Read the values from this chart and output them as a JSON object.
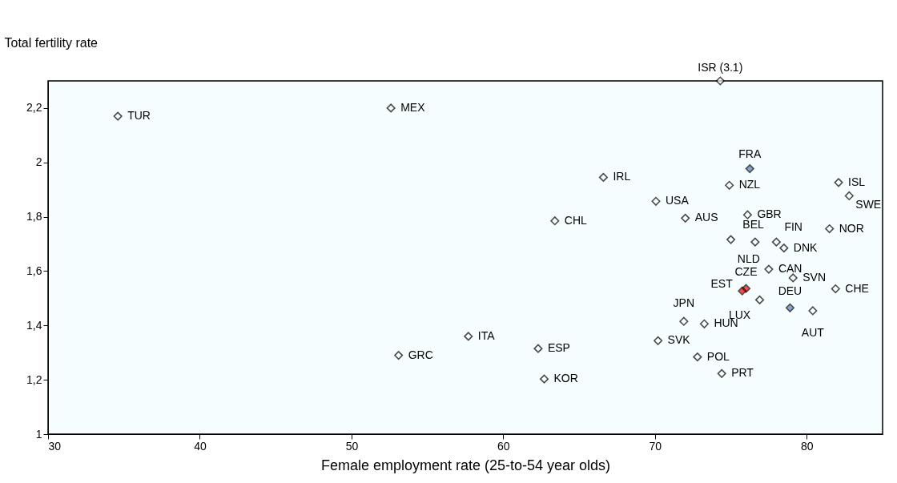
{
  "chart_data": {
    "type": "scatter",
    "xlabel": "Female employment rate (25-to-54 year olds)",
    "ylabel": "Total fertility rate",
    "xlim": [
      30,
      85
    ],
    "xticks": [
      30,
      40,
      50,
      60,
      70,
      80
    ],
    "ylim": [
      1,
      2.3
    ],
    "yticks": [
      1,
      {
        "value": 1.2,
        "label": "1,2"
      },
      {
        "value": 1.4,
        "label": "1,4"
      },
      {
        "value": 1.6,
        "label": "1,6"
      },
      {
        "value": 1.8,
        "label": "1,8"
      },
      2,
      {
        "value": 2.2,
        "label": "2,2"
      }
    ],
    "grid": false,
    "marker": "diamond",
    "series": [
      {
        "x": [
          74.3,
          34.6,
          52.6,
          76.25,
          66.6,
          74.9,
          82.1,
          82.8,
          70.06,
          72.0,
          76.1,
          63.4,
          75.0,
          76.6,
          78.0,
          78.5,
          81.5,
          77.5,
          79.1,
          76.0,
          75.75,
          81.9,
          78.9,
          71.9,
          76.9,
          73.25,
          80.4,
          57.7,
          53.1,
          62.3,
          70.2,
          72.8,
          62.7,
          74.4
        ],
        "values": [
          2.3,
          2.17,
          2.2,
          1.977,
          1.945,
          1.916,
          1.926,
          1.877,
          1.857,
          1.795,
          1.807,
          1.785,
          1.716,
          1.707,
          1.707,
          1.685,
          1.756,
          1.607,
          1.575,
          1.536,
          1.527,
          1.535,
          1.465,
          1.415,
          1.494,
          1.406,
          1.454,
          1.36,
          1.29,
          1.315,
          1.344,
          1.284,
          1.203,
          1.223
        ],
        "colors": [
          "#ffffff",
          "#ffffff",
          "#ffffff",
          "#4f81bd",
          "#ffffff",
          "#ffffff",
          "#ffffff",
          "#ffffff",
          "#ffffff",
          "#ffffff",
          "#ffffff",
          "#ffffff",
          "#ffffff",
          "#ffffff",
          "#ffffff",
          "#ffffff",
          "#ffffff",
          "#ffffff",
          "#ffffff",
          "#ff0000",
          "#ff0000",
          "#ffffff",
          "#4f81bd",
          "#ffffff",
          "#ffffff",
          "#ffffff",
          "#ffffff",
          "#ffffff",
          "#ffffff",
          "#ffffff",
          "#ffffff",
          "#ffffff",
          "#ffffff",
          "#ffffff"
        ]
      }
    ],
    "annotations": [
      {
        "text": "ISR (3.1)",
        "x": 74.3,
        "y": 2.3
      },
      {
        "text": "TUR",
        "x": 34.6,
        "y": 2.17
      },
      {
        "text": "MEX",
        "x": 52.6,
        "y": 2.2
      },
      {
        "text": "FRA",
        "x": 76.25,
        "y": 1.977
      },
      {
        "text": "IRL",
        "x": 66.6,
        "y": 1.945
      },
      {
        "text": "NZL",
        "x": 74.9,
        "y": 1.916
      },
      {
        "text": "ISL",
        "x": 82.1,
        "y": 1.926
      },
      {
        "text": "SWE",
        "x": 82.8,
        "y": 1.877
      },
      {
        "text": "USA",
        "x": 70.06,
        "y": 1.857
      },
      {
        "text": "AUS",
        "x": 72.0,
        "y": 1.795
      },
      {
        "text": "GBR",
        "x": 76.1,
        "y": 1.807
      },
      {
        "text": "CHL",
        "x": 63.4,
        "y": 1.785
      },
      {
        "text": "BEL",
        "x": 75.0,
        "y": 1.716
      },
      {
        "text": "NLD",
        "x": 76.6,
        "y": 1.707
      },
      {
        "text": "FIN",
        "x": 78.0,
        "y": 1.707
      },
      {
        "text": "DNK",
        "x": 78.5,
        "y": 1.685
      },
      {
        "text": "NOR",
        "x": 81.5,
        "y": 1.756
      },
      {
        "text": "CAN",
        "x": 77.5,
        "y": 1.607
      },
      {
        "text": "SVN",
        "x": 79.1,
        "y": 1.575
      },
      {
        "text": "CZE",
        "x": 76.0,
        "y": 1.536
      },
      {
        "text": "EST",
        "x": 75.75,
        "y": 1.527
      },
      {
        "text": "CHE",
        "x": 81.9,
        "y": 1.535
      },
      {
        "text": "DEU",
        "x": 78.9,
        "y": 1.465
      },
      {
        "text": "JPN",
        "x": 71.9,
        "y": 1.415
      },
      {
        "text": "LUX",
        "x": 76.9,
        "y": 1.494
      },
      {
        "text": "HUN",
        "x": 73.25,
        "y": 1.406
      },
      {
        "text": "AUT",
        "x": 80.4,
        "y": 1.454
      },
      {
        "text": "ITA",
        "x": 57.7,
        "y": 1.36
      },
      {
        "text": "GRC",
        "x": 53.1,
        "y": 1.29
      },
      {
        "text": "ESP",
        "x": 62.3,
        "y": 1.315
      },
      {
        "text": "SVK",
        "x": 70.2,
        "y": 1.344
      },
      {
        "text": "POL",
        "x": 72.8,
        "y": 1.284
      },
      {
        "text": "KOR",
        "x": 62.7,
        "y": 1.203
      },
      {
        "text": "PRT",
        "x": 74.4,
        "y": 1.223
      }
    ]
  }
}
